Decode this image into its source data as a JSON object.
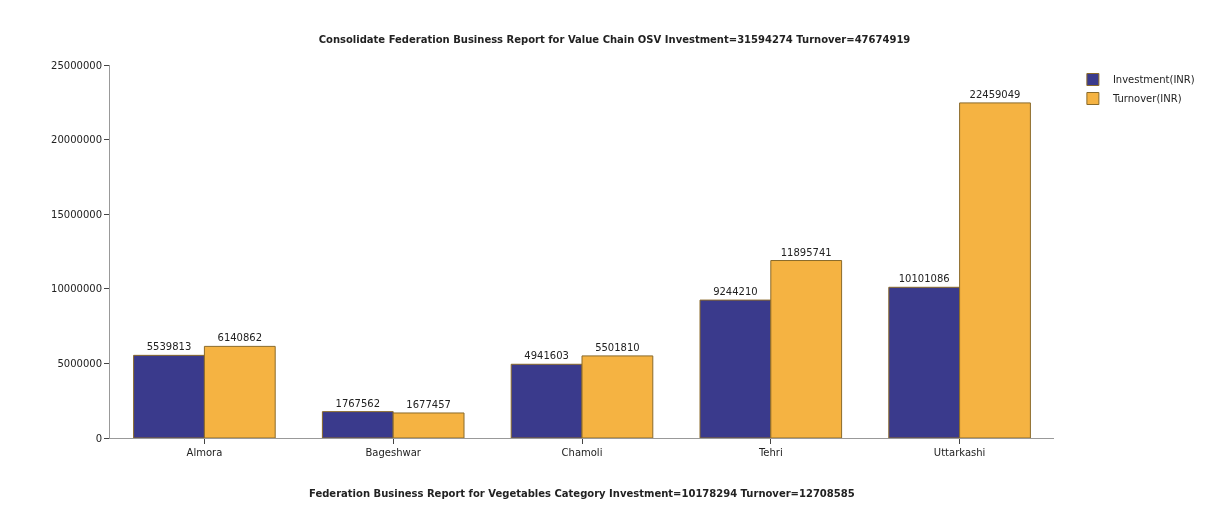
{
  "chart_data": {
    "type": "bar",
    "title": "Consolidate Federation Business Report for Value Chain OSV Investment=31594274 Turnover=47674919",
    "categories": [
      "Almora",
      "Bageshwar",
      "Chamoli",
      "Tehri",
      "Uttarkashi"
    ],
    "series": [
      {
        "name": "Investment(INR)",
        "color": "#3a3a8c",
        "values": [
          5539813,
          1767562,
          4941603,
          9244210,
          10101086
        ]
      },
      {
        "name": "Turnover(INR)",
        "color": "#f5b342",
        "values": [
          6140862,
          1677457,
          5501810,
          11895741,
          22459049
        ]
      }
    ],
    "ylim": [
      0,
      25000000
    ],
    "yticks": [
      0,
      5000000,
      10000000,
      15000000,
      20000000,
      25000000
    ],
    "data_labels": true,
    "legend": "top right",
    "annotations": [
      "Federation Business Report for Vegetables Category Investment=10178294 Turnover=12708585"
    ]
  }
}
